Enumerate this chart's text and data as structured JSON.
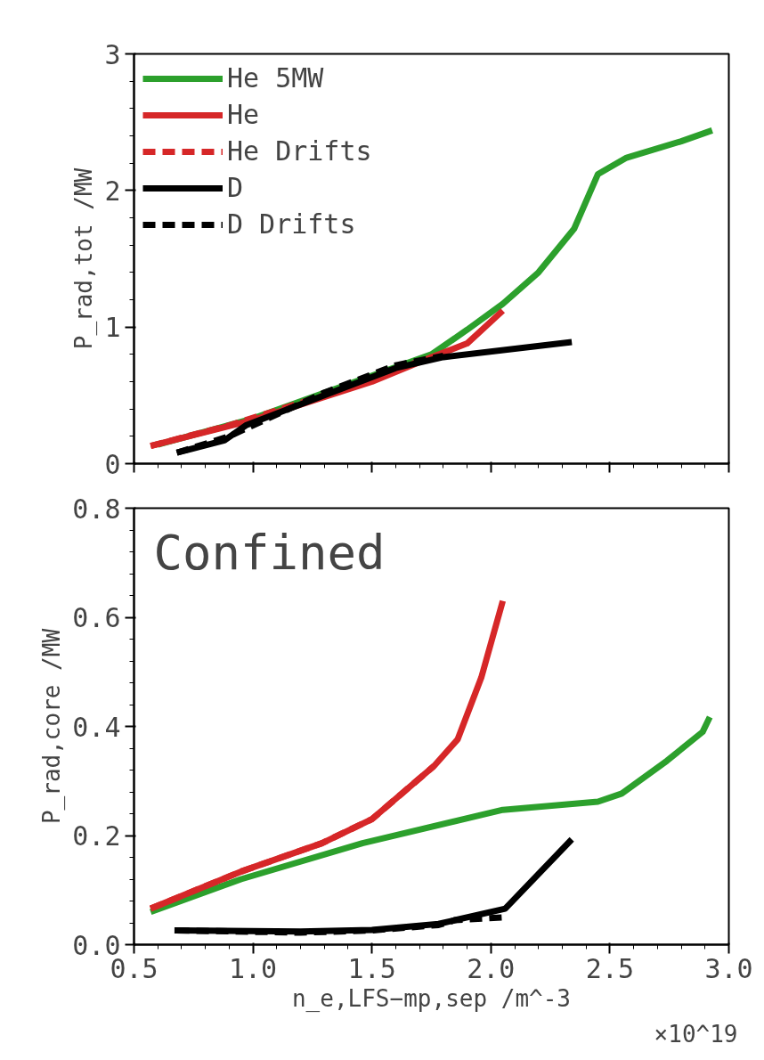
{
  "chart_data": [
    {
      "type": "line",
      "ylabel": "P_rad,tot /MW",
      "xlim": [
        0.5,
        3.0
      ],
      "xticks": [
        0.5,
        1.0,
        1.5,
        2.0,
        2.5,
        3.0
      ],
      "ylim": [
        0,
        3
      ],
      "yticks": [
        0,
        1,
        2,
        3
      ],
      "tick_labels": "y",
      "legend": "top left",
      "grid": false,
      "series": [
        {
          "name": "He 5MW",
          "color": "#2ca02c",
          "line_style": "solid",
          "x": [
            0.6,
            1.0,
            1.75,
            1.9,
            2.05,
            2.2,
            2.35,
            2.45,
            2.57,
            2.8,
            2.93
          ],
          "values": [
            0.14,
            0.33,
            0.8,
            0.98,
            1.17,
            1.4,
            1.72,
            2.12,
            2.24,
            2.36,
            2.44
          ]
        },
        {
          "name": "He",
          "color": "#d62728",
          "line_style": "solid",
          "x": [
            0.57,
            1.0,
            1.5,
            1.75,
            1.9,
            2.05
          ],
          "values": [
            0.13,
            0.32,
            0.6,
            0.78,
            0.88,
            1.12
          ]
        },
        {
          "name": "He Drifts",
          "color": "#d62728",
          "line_style": "dashed",
          "x": [
            0.57,
            0.9,
            1.3,
            1.75
          ],
          "values": [
            0.13,
            0.28,
            0.5,
            0.78
          ]
        },
        {
          "name": "D",
          "color": "#000000",
          "line_style": "solid",
          "x": [
            0.68,
            0.88,
            0.97,
            1.3,
            1.6,
            1.8,
            2.34
          ],
          "values": [
            0.08,
            0.17,
            0.28,
            0.5,
            0.7,
            0.78,
            0.89
          ]
        },
        {
          "name": "D Drifts",
          "color": "#000000",
          "line_style": "dashed",
          "x": [
            0.68,
            0.9,
            1.3,
            1.6,
            1.8
          ],
          "values": [
            0.08,
            0.2,
            0.52,
            0.72,
            0.79
          ]
        }
      ]
    },
    {
      "type": "line",
      "ylabel": "P_rad,core /MW",
      "xlabel": "n_e,LFS−mp,sep /m^-3",
      "xlim": [
        0.5,
        3.0
      ],
      "xticks": [
        {
          "value": 0.5,
          "label": "0.5"
        },
        {
          "value": 1.0,
          "label": "1.0"
        },
        {
          "value": 1.5,
          "label": "1.5"
        },
        {
          "value": 2.0,
          "label": "2.0"
        },
        {
          "value": 2.5,
          "label": "2.5"
        },
        {
          "value": 3.0,
          "label": "3.0"
        }
      ],
      "ylim": [
        0,
        0.8
      ],
      "yticks": [
        {
          "value": 0,
          "label": "0.0"
        },
        0.2,
        0.4,
        0.6,
        0.8
      ],
      "grid": false,
      "annotations": [
        "Confined",
        "×10^19"
      ],
      "series": [
        {
          "color": "#2ca02c",
          "line_style": "solid",
          "x": [
            0.57,
            0.95,
            1.46,
            2.05,
            2.45,
            2.55,
            2.74,
            2.89,
            2.92
          ],
          "values": [
            0.06,
            0.12,
            0.186,
            0.247,
            0.262,
            0.277,
            0.337,
            0.39,
            0.417
          ]
        },
        {
          "color": "#d62728",
          "line_style": "solid",
          "x": [
            0.57,
            0.95,
            1.29,
            1.5,
            1.76,
            1.86,
            1.96,
            2.05
          ],
          "values": [
            0.066,
            0.134,
            0.186,
            0.23,
            0.327,
            0.376,
            0.49,
            0.63
          ]
        },
        {
          "color": "#d62728",
          "line_style": "dashed",
          "x": [
            0.57,
            0.95,
            1.29,
            1.5,
            1.76
          ],
          "values": [
            0.066,
            0.134,
            0.186,
            0.23,
            0.327
          ]
        },
        {
          "color": "#000000",
          "line_style": "solid",
          "x": [
            0.67,
            1.2,
            1.5,
            1.78,
            2.06,
            2.34
          ],
          "values": [
            0.026,
            0.024,
            0.027,
            0.038,
            0.066,
            0.193
          ]
        },
        {
          "color": "#000000",
          "line_style": "dashed",
          "x": [
            0.68,
            1.2,
            1.5,
            1.78,
            1.85,
            2.05
          ],
          "values": [
            0.026,
            0.022,
            0.026,
            0.036,
            0.045,
            0.05
          ]
        }
      ]
    }
  ]
}
